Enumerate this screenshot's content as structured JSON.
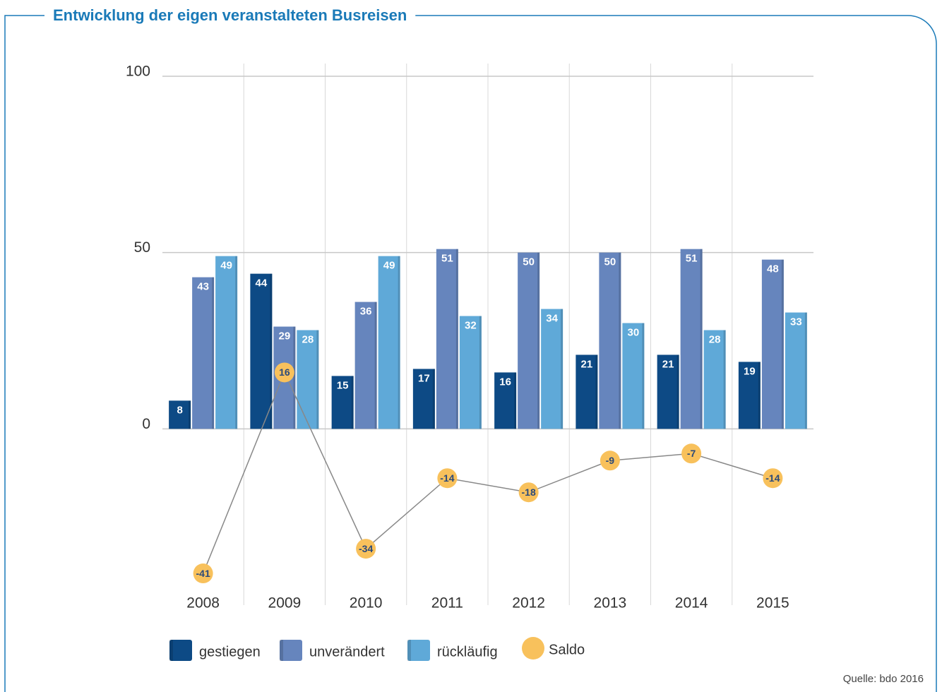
{
  "chart_data": {
    "type": "bar",
    "title": "Entwicklung der eigen veranstalteten Busreisen",
    "categories": [
      "2008",
      "2009",
      "2010",
      "2011",
      "2012",
      "2013",
      "2014",
      "2015"
    ],
    "series": [
      {
        "name": "gestiegen",
        "color": "#0d4a85",
        "values": [
          8,
          44,
          15,
          17,
          16,
          21,
          21,
          19
        ]
      },
      {
        "name": "unverändert",
        "color": "#6685bd",
        "values": [
          43,
          29,
          36,
          51,
          50,
          50,
          51,
          48
        ]
      },
      {
        "name": "rückläufig",
        "color": "#5fa9d8",
        "values": [
          49,
          28,
          49,
          32,
          34,
          30,
          28,
          33
        ]
      },
      {
        "name": "Saldo",
        "color": "#f8c15c",
        "type": "line",
        "values": [
          -41,
          16,
          -34,
          -14,
          -18,
          -9,
          -7,
          -14
        ]
      }
    ],
    "ylim": [
      -50,
      100
    ],
    "yticks": [
      0,
      50,
      100
    ],
    "grid": true,
    "source": "Quelle: bdo 2016"
  }
}
